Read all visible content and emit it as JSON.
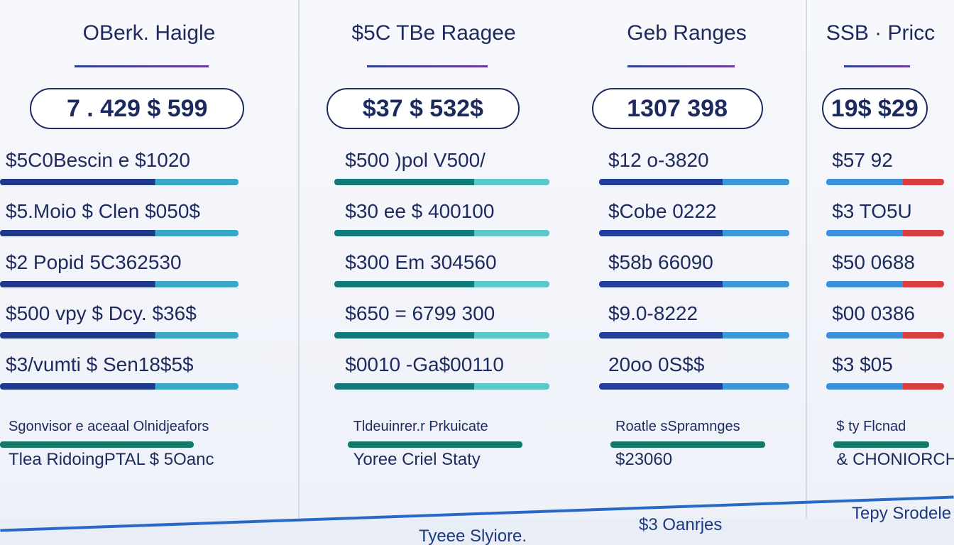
{
  "columns": [
    {
      "title": "OBerk. Haigle",
      "pill": "7 . 429 $ 599",
      "rows": [
        "$5C0Bescin e $1020",
        "$5.Moio $ Clen $050$",
        "$2 Popid 5C362530",
        "$500 vpy $ Dcy. $36$",
        "$3/vumti $ Sen18$5$"
      ],
      "footer": [
        "Sgonvisor e aceaal Olnidjeafors",
        "Tlea RidoingPTAL $ 5Oanc"
      ]
    },
    {
      "title": "$5C TBe Raagee",
      "pill": "$37 $ 532$",
      "rows": [
        "$500 )pol V500/",
        "$30 ee $ 400100",
        "$300 Em 304560",
        "$650 = 6799 300",
        "$0010 -Ga$00110"
      ],
      "footer": [
        "Tldeuinrer.r Prkuicate",
        "Yoree Criel Staty"
      ]
    },
    {
      "title": "Geb Ranges",
      "pill": "1307 398",
      "rows": [
        "$12 o-3820",
        "$Cobe 0222",
        "$58b 66090",
        "$9.0-8222",
        "20oo 0S$$"
      ],
      "footer": [
        "Roatle sSpramnges",
        "$23060"
      ]
    },
    {
      "title": "SSB · Pricc",
      "pill": "19$ $29",
      "rows": [
        "$57 92",
        "$3 TO5U",
        "$50 0688",
        "$00 0386",
        "$3 $05"
      ],
      "footer": [
        "$ ty Flcnad",
        "& CHONIORCHE"
      ]
    }
  ],
  "bottom": [
    "Tyeee Slyiore.",
    "$3 Oanrjes",
    "Tepy Srodele"
  ]
}
